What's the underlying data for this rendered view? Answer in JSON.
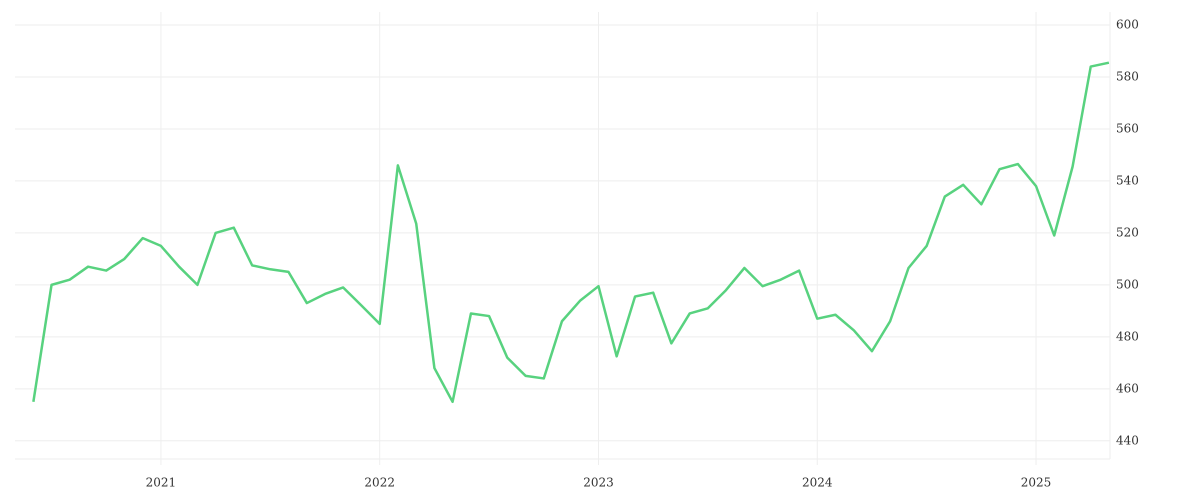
{
  "chart_data": {
    "type": "line",
    "x": [
      2020.417,
      2020.5,
      2020.583,
      2020.667,
      2020.75,
      2020.833,
      2020.917,
      2021.0,
      2021.083,
      2021.167,
      2021.25,
      2021.333,
      2021.417,
      2021.5,
      2021.583,
      2021.667,
      2021.75,
      2021.833,
      2021.917,
      2022.0,
      2022.083,
      2022.167,
      2022.25,
      2022.333,
      2022.417,
      2022.5,
      2022.583,
      2022.667,
      2022.75,
      2022.833,
      2022.917,
      2023.0,
      2023.083,
      2023.167,
      2023.25,
      2023.333,
      2023.417,
      2023.5,
      2023.583,
      2023.667,
      2023.75,
      2023.833,
      2023.917,
      2024.0,
      2024.083,
      2024.167,
      2024.25,
      2024.333,
      2024.417,
      2024.5,
      2024.583,
      2024.667,
      2024.75,
      2024.833,
      2024.917,
      2025.0,
      2025.083,
      2025.167,
      2025.25,
      2025.333
    ],
    "series": [
      {
        "color": "#58d27f",
        "values": [
          455,
          500,
          502,
          507,
          505.5,
          510,
          518,
          515,
          507,
          500,
          520,
          522,
          507.5,
          506,
          505,
          493,
          496.5,
          499,
          492,
          485,
          546,
          523.5,
          468,
          455,
          489,
          488,
          472,
          465,
          464,
          486,
          494,
          499.5,
          472.5,
          495.5,
          497,
          477.5,
          489,
          491,
          498,
          506.5,
          499.5,
          502,
          505.5,
          487,
          488.5,
          482.5,
          474.5,
          486,
          506.5,
          515,
          534,
          538.5,
          531,
          544.5,
          546.5,
          538,
          519,
          545.5,
          584,
          585.5
        ]
      }
    ],
    "xlim": [
      2020.333,
      2025.338
    ],
    "xticks": [
      2021,
      2022,
      2023,
      2024,
      2025
    ],
    "ylim": [
      433,
      605
    ],
    "yticks": [
      440,
      460,
      480,
      500,
      520,
      540,
      560,
      580,
      600
    ],
    "grid": true
  }
}
